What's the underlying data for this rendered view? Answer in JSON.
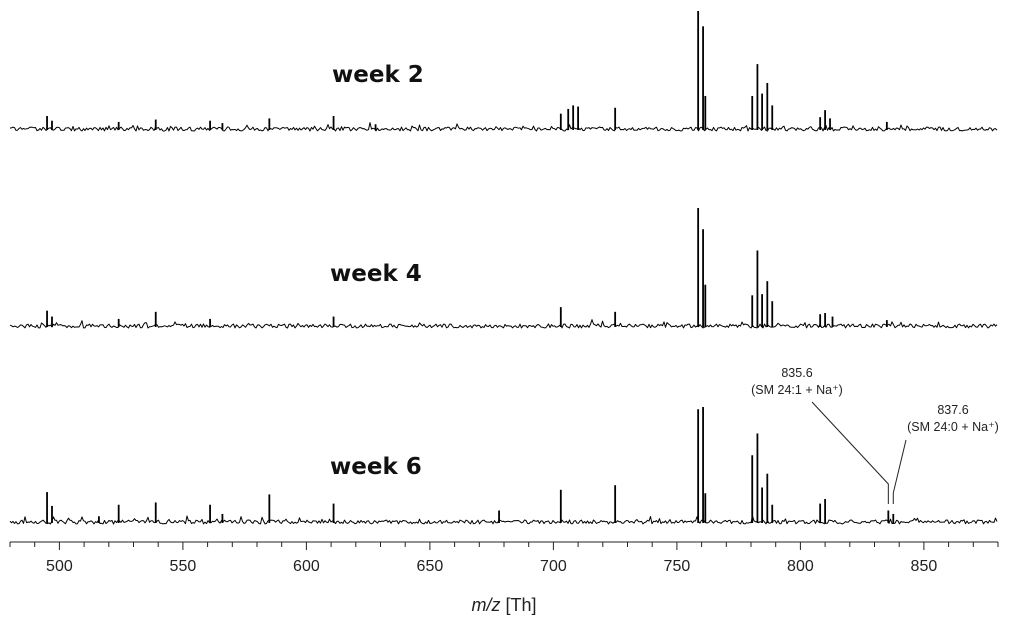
{
  "chart_data": {
    "type": "line",
    "xlabel": "m/z [Th]",
    "xlim": [
      480,
      880
    ],
    "x_ticks": [
      500,
      550,
      600,
      650,
      700,
      750,
      800,
      850
    ],
    "grid": false,
    "series": [
      {
        "name": "week 2",
        "peaks": [
          {
            "mz": 495,
            "rel": 0.11
          },
          {
            "mz": 497,
            "rel": 0.07
          },
          {
            "mz": 524,
            "rel": 0.06
          },
          {
            "mz": 539,
            "rel": 0.08
          },
          {
            "mz": 561,
            "rel": 0.07
          },
          {
            "mz": 566,
            "rel": 0.05
          },
          {
            "mz": 585,
            "rel": 0.09
          },
          {
            "mz": 611,
            "rel": 0.11
          },
          {
            "mz": 628,
            "rel": 0.04
          },
          {
            "mz": 703,
            "rel": 0.13
          },
          {
            "mz": 706,
            "rel": 0.17
          },
          {
            "mz": 708,
            "rel": 0.2
          },
          {
            "mz": 710,
            "rel": 0.19
          },
          {
            "mz": 725,
            "rel": 0.18
          },
          {
            "mz": 758.6,
            "rel": 1.0
          },
          {
            "mz": 760.6,
            "rel": 0.87
          },
          {
            "mz": 761.5,
            "rel": 0.28
          },
          {
            "mz": 780.5,
            "rel": 0.28
          },
          {
            "mz": 782.6,
            "rel": 0.55
          },
          {
            "mz": 784.5,
            "rel": 0.3
          },
          {
            "mz": 786.6,
            "rel": 0.39
          },
          {
            "mz": 788.6,
            "rel": 0.2
          },
          {
            "mz": 808,
            "rel": 0.1
          },
          {
            "mz": 810,
            "rel": 0.16
          },
          {
            "mz": 812,
            "rel": 0.09
          },
          {
            "mz": 835,
            "rel": 0.06
          }
        ]
      },
      {
        "name": "week 4",
        "peaks": [
          {
            "mz": 495,
            "rel": 0.13
          },
          {
            "mz": 497,
            "rel": 0.08
          },
          {
            "mz": 524,
            "rel": 0.06
          },
          {
            "mz": 539,
            "rel": 0.12
          },
          {
            "mz": 561,
            "rel": 0.06
          },
          {
            "mz": 611,
            "rel": 0.08
          },
          {
            "mz": 703,
            "rel": 0.16
          },
          {
            "mz": 725,
            "rel": 0.12
          },
          {
            "mz": 758.6,
            "rel": 1.0
          },
          {
            "mz": 760.6,
            "rel": 0.82
          },
          {
            "mz": 761.5,
            "rel": 0.35
          },
          {
            "mz": 780.5,
            "rel": 0.26
          },
          {
            "mz": 782.6,
            "rel": 0.64
          },
          {
            "mz": 784.5,
            "rel": 0.27
          },
          {
            "mz": 786.6,
            "rel": 0.38
          },
          {
            "mz": 788.6,
            "rel": 0.21
          },
          {
            "mz": 808,
            "rel": 0.1
          },
          {
            "mz": 810,
            "rel": 0.11
          },
          {
            "mz": 813,
            "rel": 0.08
          },
          {
            "mz": 835,
            "rel": 0.05
          }
        ]
      },
      {
        "name": "week 6",
        "peaks": [
          {
            "mz": 495,
            "rel": 0.26
          },
          {
            "mz": 497,
            "rel": 0.14
          },
          {
            "mz": 516,
            "rel": 0.05
          },
          {
            "mz": 524,
            "rel": 0.15
          },
          {
            "mz": 539,
            "rel": 0.17
          },
          {
            "mz": 561,
            "rel": 0.15
          },
          {
            "mz": 566,
            "rel": 0.07
          },
          {
            "mz": 585,
            "rel": 0.24
          },
          {
            "mz": 611,
            "rel": 0.16
          },
          {
            "mz": 678,
            "rel": 0.1
          },
          {
            "mz": 703,
            "rel": 0.28
          },
          {
            "mz": 725,
            "rel": 0.32
          },
          {
            "mz": 758.6,
            "rel": 0.98
          },
          {
            "mz": 760.6,
            "rel": 1.0
          },
          {
            "mz": 761.5,
            "rel": 0.25
          },
          {
            "mz": 780.5,
            "rel": 0.58
          },
          {
            "mz": 782.6,
            "rel": 0.77
          },
          {
            "mz": 784.5,
            "rel": 0.3
          },
          {
            "mz": 786.6,
            "rel": 0.42
          },
          {
            "mz": 788.6,
            "rel": 0.15
          },
          {
            "mz": 808,
            "rel": 0.16
          },
          {
            "mz": 810,
            "rel": 0.2
          },
          {
            "mz": 835.6,
            "rel": 0.1
          },
          {
            "mz": 837.6,
            "rel": 0.07
          }
        ]
      }
    ],
    "annotations": [
      {
        "series": "week 6",
        "mz": 835.6,
        "line1": "835.6",
        "line2": "(SM 24:1 + Na⁺)"
      },
      {
        "series": "week 6",
        "mz": 837.6,
        "line1": "837.6",
        "line2": "(SM 24:0 + Na⁺)"
      }
    ]
  }
}
